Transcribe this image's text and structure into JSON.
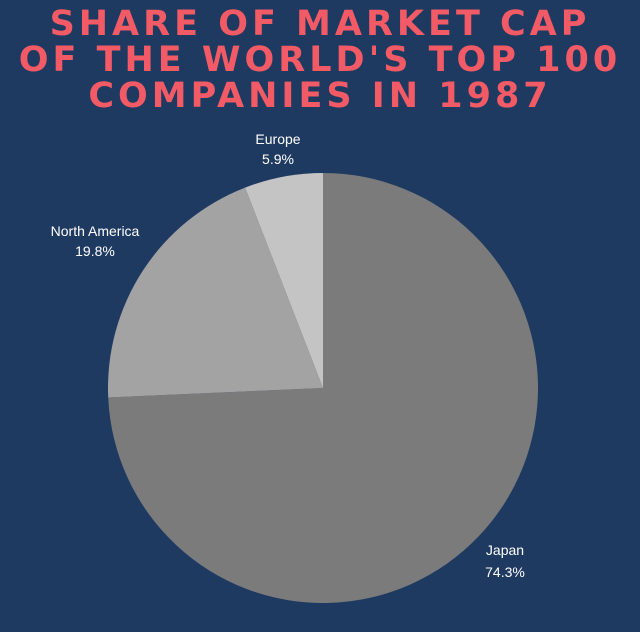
{
  "chart_data": {
    "type": "pie",
    "title_lines": [
      "SHARE OF MARKET CAP",
      "OF THE WORLD'S TOP 100",
      "COMPANIES IN 1987"
    ],
    "slices": [
      {
        "name": "Japan",
        "value": 74.3,
        "label": "74.3%",
        "color": "#7b7b7b"
      },
      {
        "name": "North America",
        "value": 19.8,
        "label": "19.8%",
        "color": "#a3a3a3"
      },
      {
        "name": "Europe",
        "value": 5.9,
        "label": "5.9%",
        "color": "#c4c4c4"
      }
    ],
    "start": "12 o'clock",
    "direction": "clockwise",
    "legend": "none"
  },
  "colors": {
    "background": "#1f3a61",
    "title": "#f25a66",
    "label_text": "#ffffff"
  }
}
